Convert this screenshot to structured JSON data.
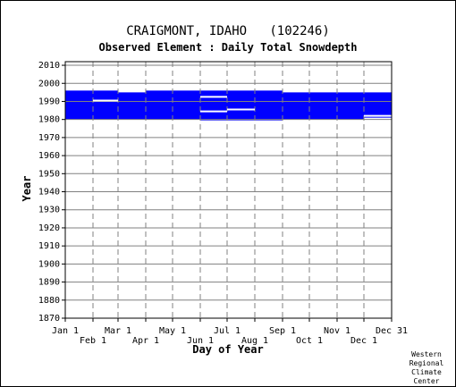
{
  "chart_data": {
    "type": "timeline",
    "title": "CRAIGMONT, IDAHO   (102246)",
    "subtitle": "Observed Element : Daily Total Snowdepth",
    "xlabel": "Day of Year",
    "ylabel": "Year",
    "ylim": [
      1870,
      2012
    ],
    "xlim": [
      1,
      366
    ],
    "y_ticks": [
      1870,
      1880,
      1890,
      1900,
      1910,
      1920,
      1930,
      1940,
      1950,
      1960,
      1970,
      1980,
      1990,
      2000,
      2010
    ],
    "x_ticks_upper": [
      {
        "label": "Jan 1",
        "day": 1
      },
      {
        "label": "Mar 1",
        "day": 60
      },
      {
        "label": "May 1",
        "day": 121
      },
      {
        "label": "Jul 1",
        "day": 182
      },
      {
        "label": "Sep 1",
        "day": 244
      },
      {
        "label": "Nov 1",
        "day": 305
      },
      {
        "label": "Dec 31",
        "day": 366
      }
    ],
    "x_ticks_lower": [
      {
        "label": "Feb 1",
        "day": 32
      },
      {
        "label": "Apr 1",
        "day": 91
      },
      {
        "label": "Jun 1",
        "day": 152
      },
      {
        "label": "Aug 1",
        "day": 213
      },
      {
        "label": "Oct 1",
        "day": 274
      },
      {
        "label": "Dec 1",
        "day": 335
      }
    ],
    "grid": true,
    "data_color": "#0000ff",
    "coverage_blocks": [
      {
        "day_start": 1,
        "day_end": 60,
        "year_start": 1980,
        "year_end": 1996
      },
      {
        "day_start": 60,
        "day_end": 91,
        "year_start": 1980,
        "year_end": 1995
      },
      {
        "day_start": 91,
        "day_end": 152,
        "year_start": 1980,
        "year_end": 1996
      },
      {
        "day_start": 152,
        "day_end": 244,
        "year_start": 1979.5,
        "year_end": 1996
      },
      {
        "day_start": 244,
        "day_end": 335,
        "year_start": 1980,
        "year_end": 1995
      },
      {
        "day_start": 335,
        "day_end": 366,
        "year_start": 1981,
        "year_end": 1995
      }
    ],
    "gaps": [
      {
        "day_start": 32,
        "day_end": 60,
        "year": 1990.5
      },
      {
        "day_start": 152,
        "day_end": 182,
        "year": 1992.5
      },
      {
        "day_start": 152,
        "day_end": 182,
        "year": 1984.5
      },
      {
        "day_start": 182,
        "day_end": 213,
        "year": 1985.5
      },
      {
        "day_start": 335,
        "day_end": 366,
        "year": 1982
      }
    ]
  },
  "credit": [
    "Western",
    "Regional",
    "Climate",
    "Center"
  ]
}
